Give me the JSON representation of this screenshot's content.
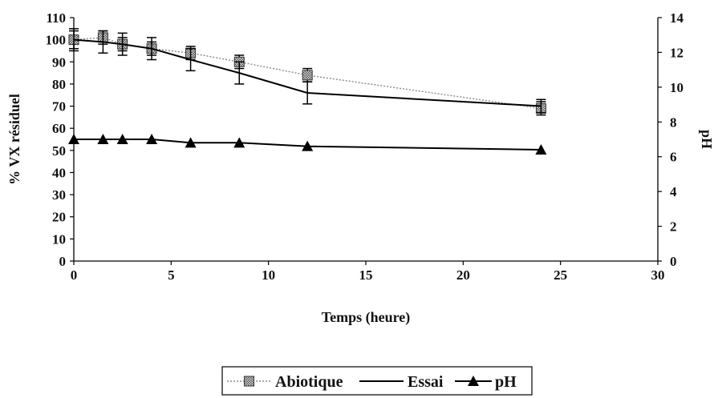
{
  "chart_data": {
    "type": "line",
    "xlabel": "Temps (heure)",
    "ylabel": "% VX résiduel",
    "y2label": "pH",
    "xlim": [
      0,
      30
    ],
    "xticks": [
      0,
      5,
      10,
      15,
      20,
      25,
      30
    ],
    "ylim": [
      0,
      110
    ],
    "yticks": [
      0,
      10,
      20,
      30,
      40,
      50,
      60,
      70,
      80,
      90,
      100,
      110
    ],
    "y2lim": [
      0,
      14
    ],
    "y2ticks": [
      0,
      2,
      4,
      6,
      8,
      10,
      12,
      14
    ],
    "grid": false,
    "legend_position": "bottom",
    "series": [
      {
        "name": "Abiotique",
        "axis": "left",
        "marker": "square-hatched",
        "line": "dotted-gray",
        "x": [
          0,
          1.5,
          2.5,
          4,
          6,
          8.5,
          12,
          24
        ],
        "y": [
          100,
          101,
          98,
          96,
          94,
          90,
          84,
          69
        ],
        "error": [
          4,
          3,
          3,
          3,
          3,
          3,
          3,
          3
        ]
      },
      {
        "name": "Essai",
        "axis": "left",
        "marker": "none",
        "line": "solid-black",
        "x": [
          0,
          1.5,
          2.5,
          4,
          6,
          8.5,
          12,
          24
        ],
        "y": [
          100,
          99,
          98,
          96,
          91,
          85,
          76,
          70
        ],
        "error": [
          5,
          5,
          5,
          5,
          5,
          5,
          5,
          3
        ]
      },
      {
        "name": "pH",
        "axis": "right",
        "marker": "triangle",
        "line": "solid-black",
        "x": [
          0,
          1.5,
          2.5,
          4,
          6,
          8.5,
          12,
          24
        ],
        "y": [
          7.0,
          7.0,
          7.0,
          7.0,
          6.8,
          6.8,
          6.6,
          6.4
        ]
      }
    ]
  }
}
